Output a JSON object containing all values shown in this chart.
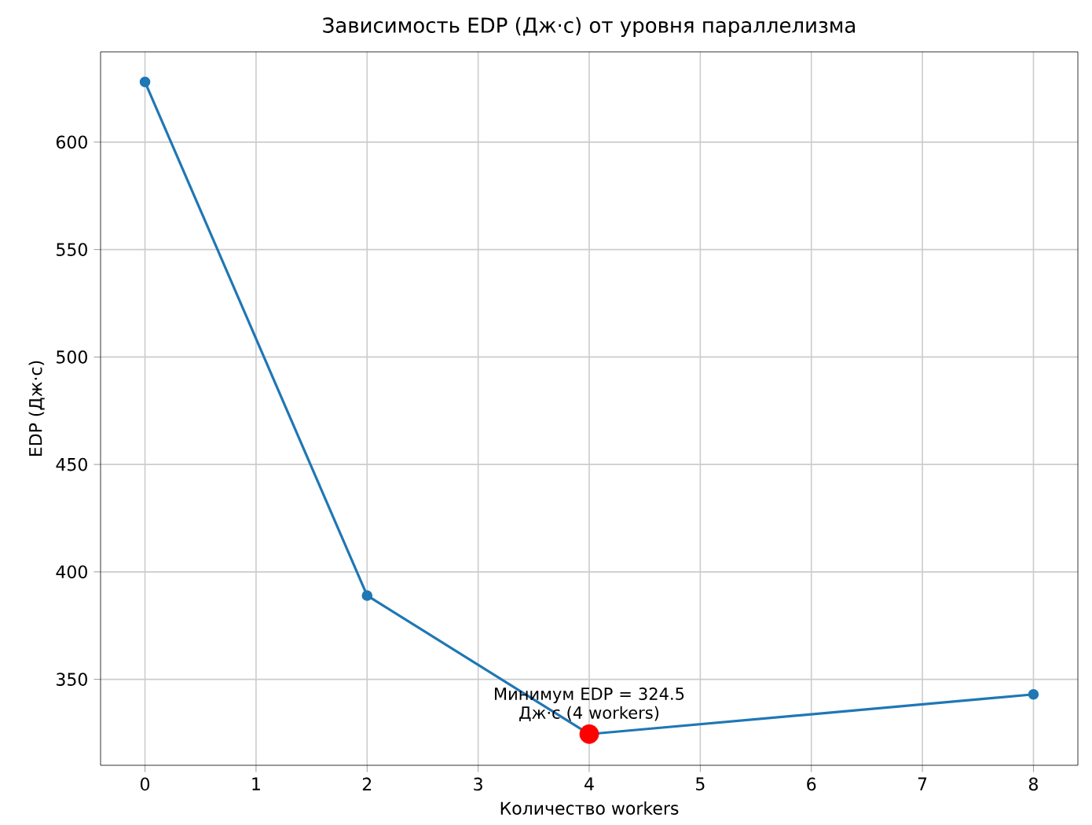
{
  "chart_data": {
    "type": "line",
    "title": "Зависимость EDP (Дж·с) от уровня параллелизма",
    "xlabel": "Количество workers",
    "ylabel": "EDP (Дж·с)",
    "xlim": [
      -0.4,
      8.4
    ],
    "xticks": [
      0,
      1,
      2,
      3,
      4,
      5,
      6,
      7,
      8
    ],
    "ylim": [
      310,
      642
    ],
    "yticks": [
      350,
      400,
      450,
      500,
      550,
      600
    ],
    "grid": true,
    "marker": "circle",
    "series": [
      {
        "color": "#1f77b4",
        "x": [
          0,
          2,
          4,
          8
        ],
        "values": [
          628,
          389,
          324.5,
          343
        ]
      },
      {
        "type": "scatter",
        "color": "#ff0000",
        "x": [
          4
        ],
        "values": [
          324.5
        ]
      }
    ],
    "annotations": [
      {
        "text": "Минимум EDP = 324.5 Дж·с (4 workers)",
        "x": 4,
        "y": 324.5
      }
    ]
  }
}
